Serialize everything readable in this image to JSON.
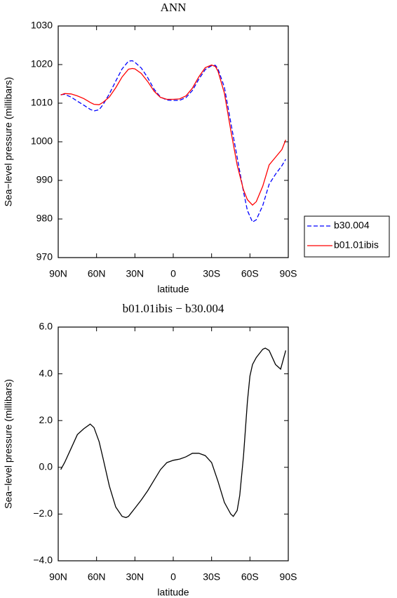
{
  "chart_data": [
    {
      "type": "line",
      "title": "ANN",
      "x_label": "latitude",
      "y_label": "Sea−level pressure (millibars)",
      "x": [
        88,
        85,
        80,
        75,
        70,
        65,
        62,
        58,
        55,
        50,
        45,
        40,
        35,
        32,
        30,
        25,
        20,
        15,
        10,
        5,
        0,
        -5,
        -10,
        -15,
        -20,
        -25,
        -30,
        -33,
        -35,
        -40,
        -45,
        -50,
        -55,
        -58,
        -62,
        -65,
        -70,
        -75,
        -80,
        -85,
        -88
      ],
      "series": [
        {
          "name": "b30.004",
          "color": "#0000ff",
          "dashed": true,
          "values": [
            1012.2,
            1012.3,
            1011.6,
            1010.5,
            1009.5,
            1008.4,
            1008.0,
            1008.3,
            1009.6,
            1012.4,
            1015.7,
            1018.9,
            1020.9,
            1021.0,
            1020.6,
            1019.1,
            1016.6,
            1013.6,
            1011.6,
            1010.8,
            1010.7,
            1010.75,
            1011.45,
            1013.3,
            1016.2,
            1018.7,
            1019.7,
            1019.8,
            1018.9,
            1014.1,
            1005,
            996,
            987,
            982.2,
            979.2,
            979.8,
            983.5,
            989,
            991.6,
            993.8,
            995.5
          ]
        },
        {
          "name": "b01.01ibis",
          "color": "#ff0000",
          "dashed": false,
          "values": [
            1012.1,
            1012.5,
            1012.4,
            1011.9,
            1011.2,
            1010.2,
            1009.7,
            1009.6,
            1010.2,
            1011.6,
            1014.0,
            1016.8,
            1018.8,
            1019.0,
            1018.9,
            1017.7,
            1015.6,
            1013.1,
            1011.5,
            1011.0,
            1011.0,
            1011.1,
            1011.9,
            1013.9,
            1016.8,
            1019.2,
            1019.9,
            1019.5,
            1018.3,
            1012.6,
            1003,
            994,
            987.5,
            985,
            983.6,
            984.5,
            988.5,
            994,
            996,
            998,
            1000.5
          ]
        }
      ],
      "xlim": [
        90,
        -90
      ],
      "xticks": [
        {
          "value": 90,
          "label": "90N"
        },
        {
          "value": 60,
          "label": "60N"
        },
        {
          "value": 30,
          "label": "30N"
        },
        0,
        {
          "value": -30,
          "label": "30S"
        },
        {
          "value": -60,
          "label": "60S"
        },
        {
          "value": -90,
          "label": "90S"
        }
      ],
      "ylim": [
        970,
        1030
      ],
      "yticks": [
        970,
        980,
        990,
        1000,
        1010,
        1020,
        1030
      ],
      "legend": "outside right"
    },
    {
      "type": "line",
      "title": "b01.01ibis − b30.004",
      "x_label": "latitude",
      "y_label": "Sea−level pressure (millibars)",
      "x": [
        88,
        85,
        80,
        75,
        70,
        65,
        62,
        58,
        55,
        50,
        45,
        40,
        37,
        35,
        30,
        25,
        20,
        15,
        10,
        5,
        0,
        -5,
        -10,
        -15,
        -20,
        -25,
        -30,
        -35,
        -40,
        -45,
        -47,
        -50,
        -52,
        -55,
        -58,
        -60,
        -62,
        -65,
        -70,
        -72,
        -75,
        -80,
        -84,
        -88
      ],
      "color": "#000000",
      "values": [
        -0.1,
        0.2,
        0.8,
        1.4,
        1.65,
        1.85,
        1.7,
        1.1,
        0.4,
        -0.8,
        -1.7,
        -2.1,
        -2.15,
        -2.1,
        -1.75,
        -1.4,
        -1.0,
        -0.55,
        -0.1,
        0.2,
        0.3,
        0.35,
        0.45,
        0.6,
        0.6,
        0.5,
        0.2,
        -0.6,
        -1.5,
        -2.0,
        -2.1,
        -1.85,
        -1.2,
        0.5,
        2.8,
        3.9,
        4.4,
        4.7,
        5.05,
        5.1,
        5.0,
        4.4,
        4.2,
        5.0
      ],
      "xlim": [
        90,
        -90
      ],
      "xticks": [
        {
          "value": 90,
          "label": "90N"
        },
        {
          "value": 60,
          "label": "60N"
        },
        {
          "value": 30,
          "label": "30N"
        },
        0,
        {
          "value": -30,
          "label": "30S"
        },
        {
          "value": -60,
          "label": "60S"
        },
        {
          "value": -90,
          "label": "90S"
        }
      ],
      "ylim": [
        -4,
        6
      ],
      "yticks": [
        {
          "value": -4,
          "label": "−4.0"
        },
        {
          "value": -2,
          "label": "−2.0"
        },
        {
          "value": 0,
          "label": "0.0"
        },
        {
          "value": 2,
          "label": "2.0"
        },
        {
          "value": 4,
          "label": "4.0"
        },
        {
          "value": 6,
          "label": "6.0"
        }
      ]
    }
  ]
}
